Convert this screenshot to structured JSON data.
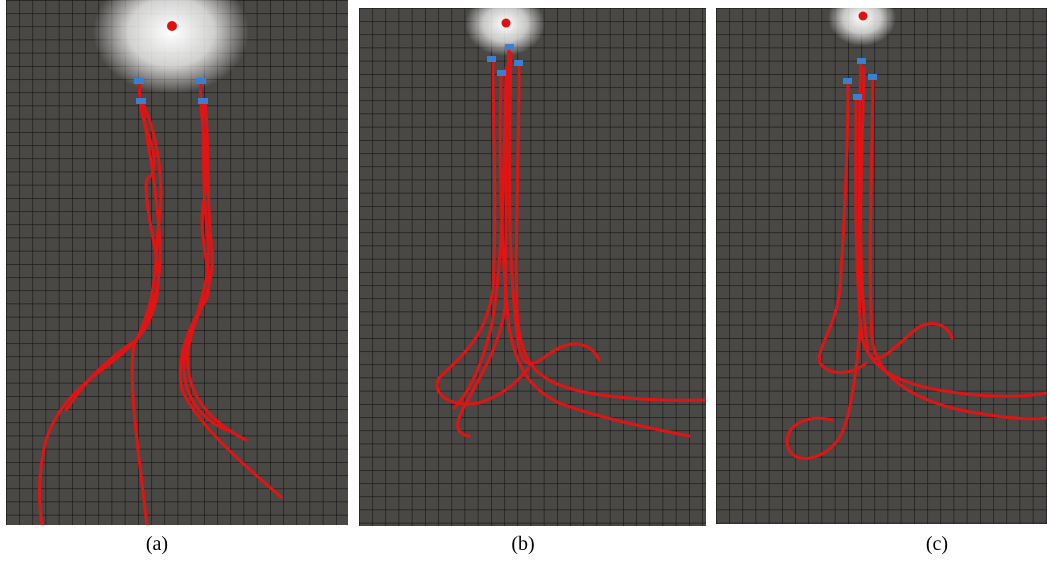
{
  "panels": [
    {
      "id": "a",
      "caption": "(a)"
    },
    {
      "id": "b",
      "caption": "(b)"
    },
    {
      "id": "c",
      "caption": "(c)"
    }
  ],
  "colors": {
    "floor": "#4a4845",
    "grid": "#151515",
    "trajectory": "#e01414",
    "light_source": "#e01010",
    "robot_marker": "#3a7fd0",
    "glow": "#ffffff"
  }
}
